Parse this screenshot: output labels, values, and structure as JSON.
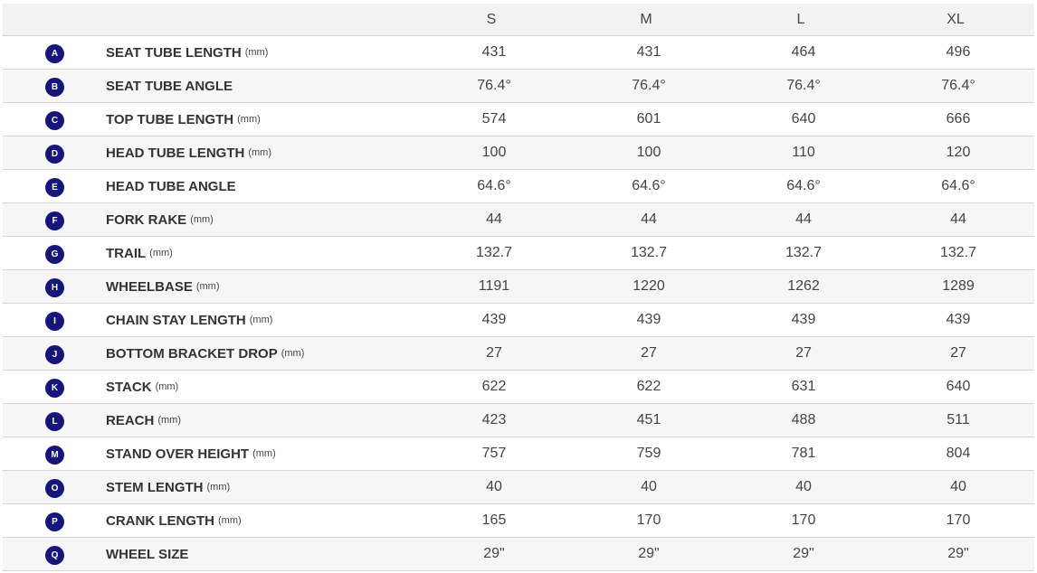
{
  "table": {
    "columns": [
      "S",
      "M",
      "L",
      "XL"
    ],
    "rows": [
      {
        "letter": "A",
        "name": "SEAT TUBE LENGTH",
        "unit": "(mm)",
        "values": [
          431,
          431,
          464,
          496
        ]
      },
      {
        "letter": "B",
        "name": "SEAT TUBE ANGLE",
        "values": [
          "76.4°",
          "76.4°",
          "76.4°",
          "76.4°"
        ]
      },
      {
        "letter": "C",
        "name": "TOP TUBE LENGTH",
        "unit": "(mm)",
        "values": [
          574,
          601,
          640,
          666
        ]
      },
      {
        "letter": "D",
        "name": "HEAD TUBE LENGTH",
        "unit": "(mm)",
        "values": [
          100,
          100,
          110,
          120
        ]
      },
      {
        "letter": "E",
        "name": "HEAD TUBE ANGLE",
        "values": [
          "64.6°",
          "64.6°",
          "64.6°",
          "64.6°"
        ]
      },
      {
        "letter": "F",
        "name": "FORK RAKE",
        "unit": "(mm)",
        "values": [
          44,
          44,
          44,
          44
        ]
      },
      {
        "letter": "G",
        "name": "TRAIL",
        "unit": "(mm)",
        "values": [
          132.7,
          132.7,
          132.7,
          132.7
        ]
      },
      {
        "letter": "H",
        "name": "WHEELBASE",
        "unit": "(mm)",
        "values": [
          1191,
          1220,
          1262,
          1289
        ]
      },
      {
        "letter": "I",
        "name": "CHAIN STAY LENGTH",
        "unit": "(mm)",
        "values": [
          439,
          439,
          439,
          439
        ]
      },
      {
        "letter": "J",
        "name": "BOTTOM BRACKET DROP",
        "unit": "(mm)",
        "values": [
          27,
          27,
          27,
          27
        ]
      },
      {
        "letter": "K",
        "name": "STACK",
        "unit": "(mm)",
        "values": [
          622,
          622,
          631,
          640
        ]
      },
      {
        "letter": "L",
        "name": "REACH",
        "unit": "(mm)",
        "values": [
          423,
          451,
          488,
          511
        ]
      },
      {
        "letter": "M",
        "name": "STAND OVER HEIGHT",
        "unit": "(mm)",
        "values": [
          757,
          759,
          781,
          804
        ]
      },
      {
        "letter": "O",
        "name": "STEM LENGTH",
        "unit": "(mm)",
        "values": [
          40,
          40,
          40,
          40
        ]
      },
      {
        "letter": "P",
        "name": "CRANK LENGTH",
        "unit": "(mm)",
        "values": [
          165,
          170,
          170,
          170
        ]
      },
      {
        "letter": "Q",
        "name": "WHEEL SIZE",
        "values": [
          "29\"",
          "29\"",
          "29\"",
          "29\""
        ]
      }
    ]
  }
}
